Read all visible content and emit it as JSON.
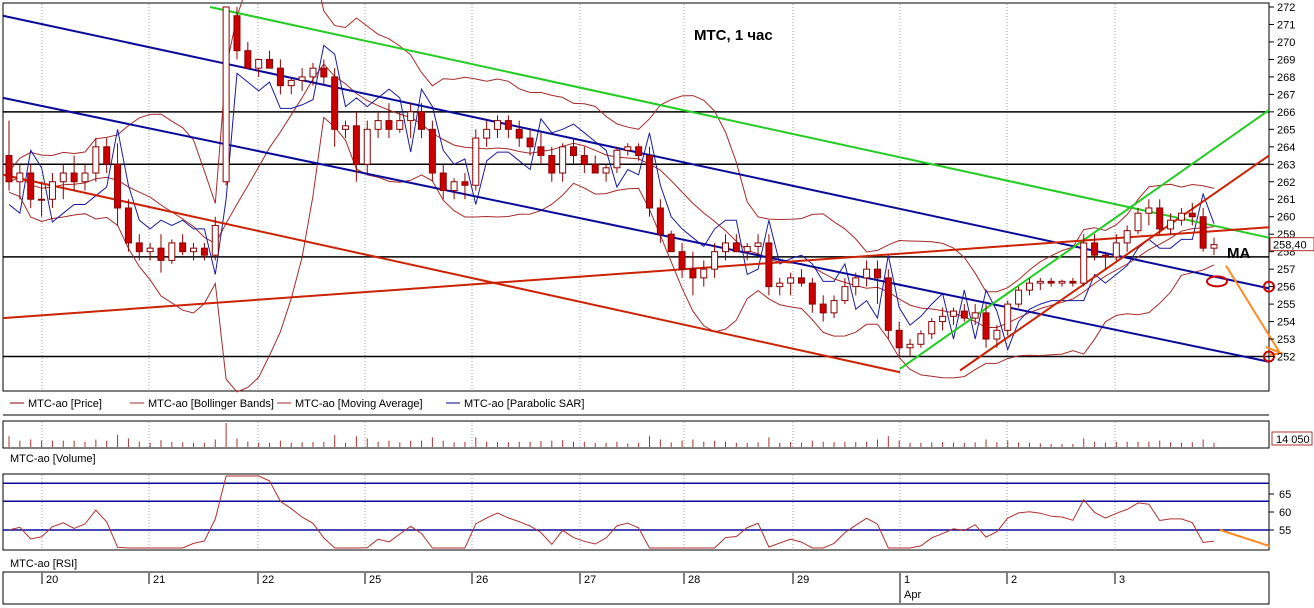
{
  "chart_data": {
    "type": "candlestick",
    "title": "МТС,  1 час",
    "annotation_ma": "MA",
    "current_price_label": "258,40",
    "volume_value_label": "14 050",
    "price_axis": {
      "min": 251,
      "max": 272,
      "ticks": [
        "272",
        "271",
        "270",
        "269",
        "268",
        "267",
        "266",
        "265",
        "264",
        "263",
        "262",
        "261",
        "260",
        "259",
        "258",
        "257",
        "256",
        "255",
        "254",
        "253",
        "252"
      ]
    },
    "rsi_axis": {
      "ticks": [
        "65",
        "60",
        "55"
      ]
    },
    "horizontal_levels": [
      266,
      263,
      257.7,
      252.0
    ],
    "rsi_levels": [
      68,
      63,
      55
    ],
    "legend_price": [
      {
        "label": "МТС-ао [Price]",
        "color": "#8b0000"
      },
      {
        "label": "МТС-ао [Bollinger Bands]",
        "color": "#a52a2a"
      },
      {
        "label": "МТС-ао [Moving Average]",
        "color": "#a52a2a"
      },
      {
        "label": "МТС-ао [Parabolic SAR]",
        "color": "#00008b"
      }
    ],
    "legend_volume": "МТС-ао [Volume]",
    "legend_rsi": "МТС-ао [RSI]",
    "days": [
      "20",
      "21",
      "22",
      "25",
      "26",
      "27",
      "28",
      "29",
      "1",
      "2",
      "3"
    ],
    "month_label": "Apr",
    "candles": [
      [
        263.5,
        265.5,
        261.5,
        262
      ],
      [
        262,
        263,
        261,
        262.5
      ],
      [
        262.5,
        263,
        260.5,
        261
      ],
      [
        261,
        262,
        260,
        261
      ],
      [
        261,
        262.5,
        260.5,
        262
      ],
      [
        262,
        263,
        261,
        262.5
      ],
      [
        262.5,
        263.5,
        261.5,
        262
      ],
      [
        262,
        263,
        261.5,
        262.5
      ],
      [
        262.5,
        264.5,
        262,
        264
      ],
      [
        264,
        264.5,
        262.5,
        263
      ],
      [
        263,
        264.2,
        259.5,
        260.5
      ],
      [
        260.5,
        261,
        258,
        258.5
      ],
      [
        258.5,
        259,
        257.5,
        258
      ],
      [
        258,
        258.5,
        257.5,
        258.2
      ],
      [
        258.2,
        259,
        256.8,
        257.5
      ],
      [
        257.5,
        258.7,
        257.3,
        258.5
      ],
      [
        258.5,
        259,
        257.8,
        258
      ],
      [
        258,
        258.5,
        257.5,
        258.2
      ],
      [
        258.2,
        258.5,
        257.5,
        257.8
      ],
      [
        257.8,
        260,
        257.5,
        259.5
      ],
      [
        262,
        272,
        261.8,
        272
      ],
      [
        271.5,
        272,
        269,
        269.5
      ],
      [
        269.5,
        270,
        268.5,
        268.5
      ],
      [
        268.5,
        269,
        268,
        269
      ],
      [
        269,
        269.5,
        268.5,
        268.5
      ],
      [
        268.5,
        269,
        267,
        267.5
      ],
      [
        267.5,
        268,
        267,
        267.8
      ],
      [
        267.8,
        268.5,
        267.2,
        268
      ],
      [
        268,
        268.8,
        267.5,
        268.5
      ],
      [
        268.5,
        269,
        267.5,
        268
      ],
      [
        268,
        268.5,
        264,
        265
      ],
      [
        265,
        265.5,
        264.5,
        265.2
      ],
      [
        265.2,
        266,
        262,
        263
      ],
      [
        263,
        265.5,
        262.5,
        265
      ],
      [
        265,
        266,
        264.5,
        265.5
      ],
      [
        265.5,
        266.5,
        264.5,
        265
      ],
      [
        265,
        266,
        264.8,
        265.5
      ],
      [
        265.5,
        266.5,
        264.5,
        266
      ],
      [
        266,
        266.5,
        264.5,
        265
      ],
      [
        265,
        265.5,
        262,
        262.5
      ],
      [
        262.5,
        263,
        261,
        261.5
      ],
      [
        261.5,
        262.2,
        261,
        262
      ],
      [
        262,
        262.5,
        261,
        261.8
      ],
      [
        261.8,
        265,
        261.5,
        264.5
      ],
      [
        264.5,
        265.5,
        264,
        265
      ],
      [
        265,
        265.8,
        264.5,
        265.5
      ],
      [
        265.5,
        265.8,
        264.5,
        265
      ],
      [
        265,
        265.5,
        264,
        264.5
      ],
      [
        264.5,
        265,
        263.5,
        264
      ],
      [
        264,
        264.8,
        263,
        263.5
      ],
      [
        263.5,
        264,
        262,
        262.5
      ],
      [
        262.5,
        264.2,
        262,
        264
      ],
      [
        264,
        264.5,
        263,
        263.5
      ],
      [
        263.5,
        264,
        262.5,
        263
      ],
      [
        263,
        263.5,
        262.5,
        262.5
      ],
      [
        262.5,
        263,
        262,
        262.8
      ],
      [
        262.8,
        264,
        262.5,
        263.8
      ],
      [
        263.8,
        264.2,
        263.5,
        264
      ],
      [
        264,
        264.2,
        263.2,
        263.5
      ],
      [
        263.5,
        264,
        260,
        260.5
      ],
      [
        260.5,
        261,
        258.5,
        259
      ],
      [
        259,
        259.2,
        258,
        258
      ],
      [
        258,
        258.5,
        256.5,
        257
      ],
      [
        257,
        258,
        255.5,
        256.5
      ],
      [
        256.5,
        257.5,
        256,
        257
      ],
      [
        257,
        258.5,
        256.5,
        258
      ],
      [
        258,
        259,
        257.5,
        258.5
      ],
      [
        258.5,
        259,
        258,
        258
      ],
      [
        258,
        258.5,
        257.5,
        258.3
      ],
      [
        258.3,
        259,
        257.8,
        258.5
      ],
      [
        258.5,
        259,
        255.5,
        256
      ],
      [
        256,
        256.5,
        255.5,
        256.2
      ],
      [
        256.2,
        256.8,
        255.5,
        256.5
      ],
      [
        256.5,
        257,
        256,
        256.2
      ],
      [
        256.2,
        256.5,
        254.5,
        255
      ],
      [
        255,
        255.5,
        254,
        254.5
      ],
      [
        254.5,
        255.5,
        254.2,
        255.2
      ],
      [
        255.2,
        256.5,
        255,
        256
      ],
      [
        256,
        256.8,
        255.5,
        256.5
      ],
      [
        256.5,
        257.5,
        256,
        257
      ],
      [
        257,
        257.5,
        255,
        256.5
      ],
      [
        256.5,
        257,
        253,
        253.5
      ],
      [
        253.5,
        254,
        252,
        252.5
      ],
      [
        252.5,
        253,
        252,
        252.7
      ],
      [
        252.7,
        253.5,
        252.5,
        253.3
      ],
      [
        253.3,
        254.2,
        253,
        254
      ],
      [
        254,
        254.8,
        253.5,
        254.3
      ],
      [
        254.3,
        254.8,
        253.8,
        254.6
      ],
      [
        254.6,
        255,
        254,
        254.2
      ],
      [
        254.2,
        255,
        253.8,
        254.5
      ],
      [
        254.5,
        255,
        252.5,
        253
      ],
      [
        253,
        253.8,
        252.5,
        253.5
      ],
      [
        253.5,
        255.2,
        253.2,
        255
      ],
      [
        255,
        256,
        254.8,
        255.8
      ],
      [
        255.8,
        256.5,
        255.5,
        256.2
      ],
      [
        256.2,
        256.5,
        255.8,
        256.3
      ],
      [
        256.3,
        256.5,
        256,
        256.2
      ],
      [
        256.2,
        256.4,
        256,
        256.3
      ],
      [
        256.3,
        256.5,
        256,
        256.2
      ],
      [
        256.2,
        259,
        256,
        258.5
      ],
      [
        258.5,
        259,
        257.5,
        257.8
      ],
      [
        257.8,
        258,
        257,
        257.7
      ],
      [
        257.7,
        259,
        257.5,
        258.5
      ],
      [
        258.5,
        259.5,
        258,
        259.2
      ],
      [
        259.2,
        260.5,
        259,
        260.2
      ],
      [
        260.2,
        261,
        259.5,
        260.5
      ],
      [
        260.5,
        261,
        259,
        259.3
      ],
      [
        259.3,
        260.2,
        259,
        259.8
      ],
      [
        259.8,
        260.5,
        259.5,
        260.2
      ],
      [
        260.2,
        260.8,
        259.5,
        260
      ],
      [
        260,
        260.5,
        258,
        258.2
      ],
      [
        258.2,
        258.8,
        257.8,
        258.4
      ]
    ]
  }
}
